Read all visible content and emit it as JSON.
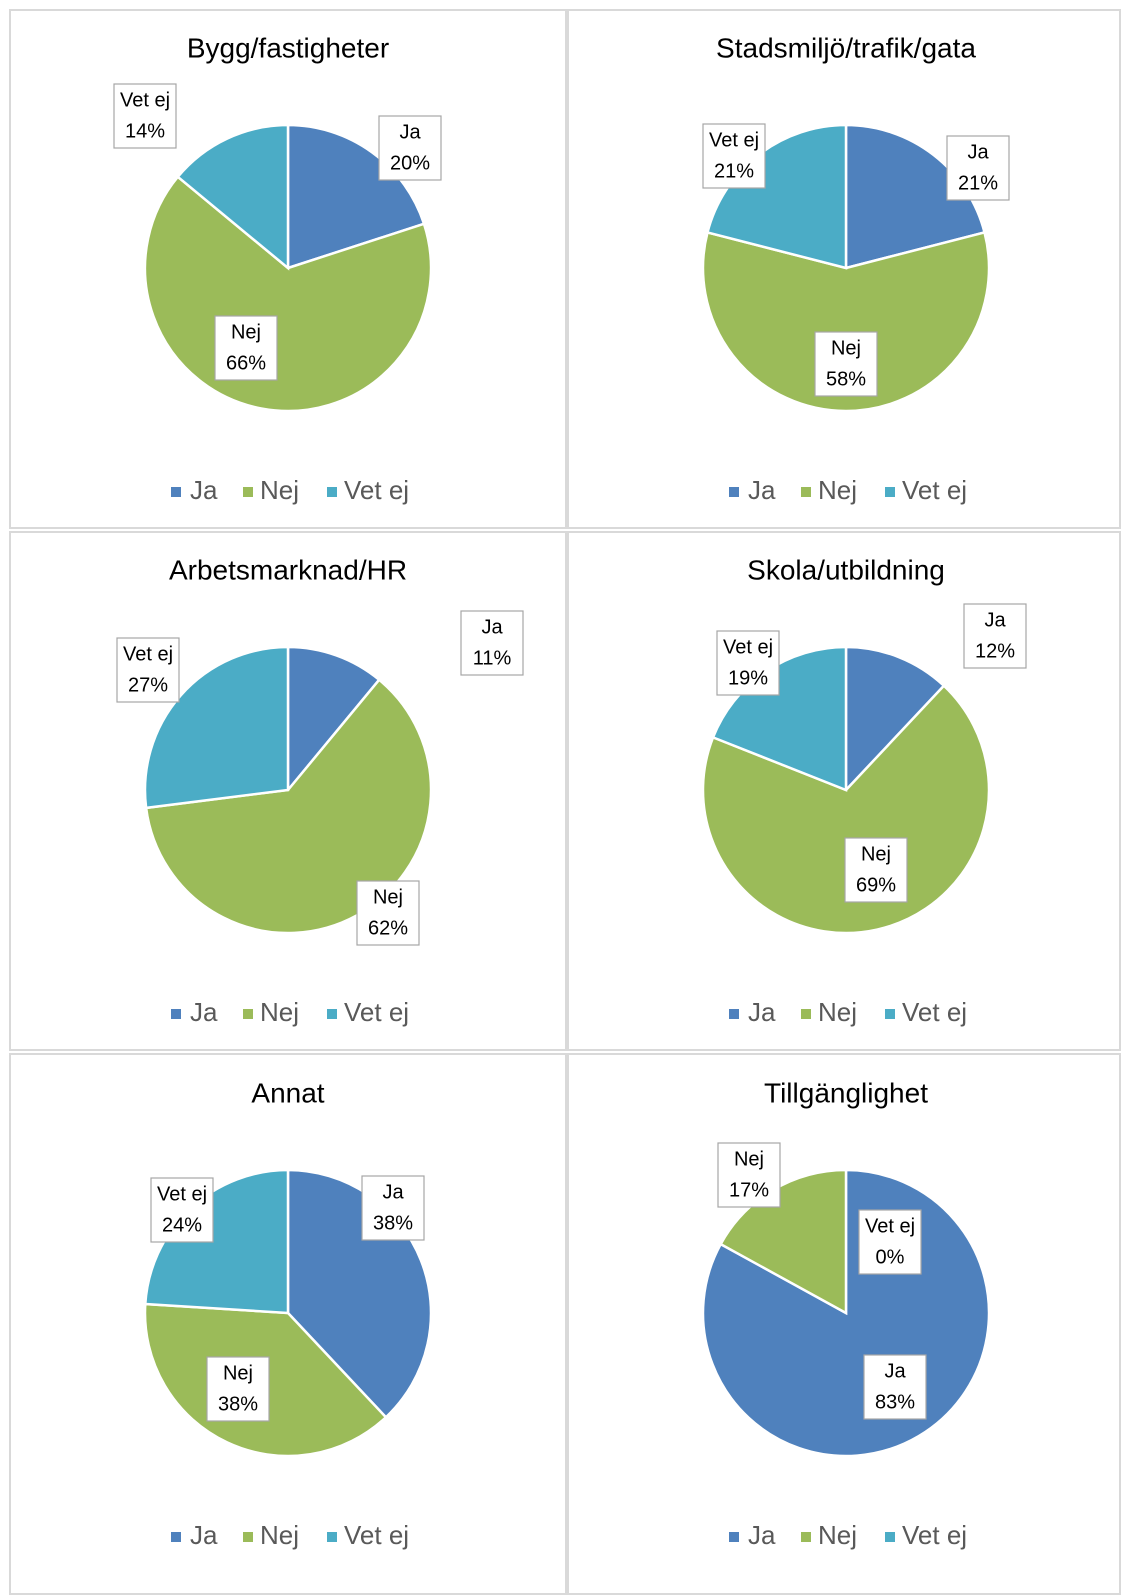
{
  "chart_data": [
    {
      "type": "pie",
      "title": "Bygg/fastigheter",
      "categories": [
        "Ja",
        "Nej",
        "Vet ej"
      ],
      "values": [
        20,
        66,
        14
      ],
      "value_labels": [
        "20%",
        "66%",
        "14%"
      ],
      "colors": [
        "#4f81bd",
        "#9bbb59",
        "#4bacc6"
      ],
      "legend": "bottom"
    },
    {
      "type": "pie",
      "title": "Stadsmiljö/trafik/gata",
      "categories": [
        "Ja",
        "Nej",
        "Vet ej"
      ],
      "values": [
        21,
        58,
        21
      ],
      "value_labels": [
        "21%",
        "58%",
        "21%"
      ],
      "colors": [
        "#4f81bd",
        "#9bbb59",
        "#4bacc6"
      ],
      "legend": "bottom"
    },
    {
      "type": "pie",
      "title": "Arbetsmarknad/HR",
      "categories": [
        "Ja",
        "Nej",
        "Vet ej"
      ],
      "values": [
        11,
        62,
        27
      ],
      "value_labels": [
        "11%",
        "62%",
        "27%"
      ],
      "colors": [
        "#4f81bd",
        "#9bbb59",
        "#4bacc6"
      ],
      "legend": "bottom"
    },
    {
      "type": "pie",
      "title": "Skola/utbildning",
      "categories": [
        "Ja",
        "Nej",
        "Vet ej"
      ],
      "values": [
        12,
        69,
        19
      ],
      "value_labels": [
        "12%",
        "69%",
        "19%"
      ],
      "colors": [
        "#4f81bd",
        "#9bbb59",
        "#4bacc6"
      ],
      "legend": "bottom"
    },
    {
      "type": "pie",
      "title": "Annat",
      "categories": [
        "Ja",
        "Nej",
        "Vet ej"
      ],
      "values": [
        38,
        38,
        24
      ],
      "value_labels": [
        "38%",
        "38%",
        "24%"
      ],
      "colors": [
        "#4f81bd",
        "#9bbb59",
        "#4bacc6"
      ],
      "legend": "bottom"
    },
    {
      "type": "pie",
      "title": "Tillgänglighet",
      "categories": [
        "Ja",
        "Nej",
        "Vet ej"
      ],
      "values": [
        83,
        17,
        0
      ],
      "value_labels": [
        "83%",
        "17%",
        "0%"
      ],
      "colors": [
        "#4f81bd",
        "#9bbb59",
        "#4bacc6"
      ],
      "legend": "bottom"
    }
  ]
}
